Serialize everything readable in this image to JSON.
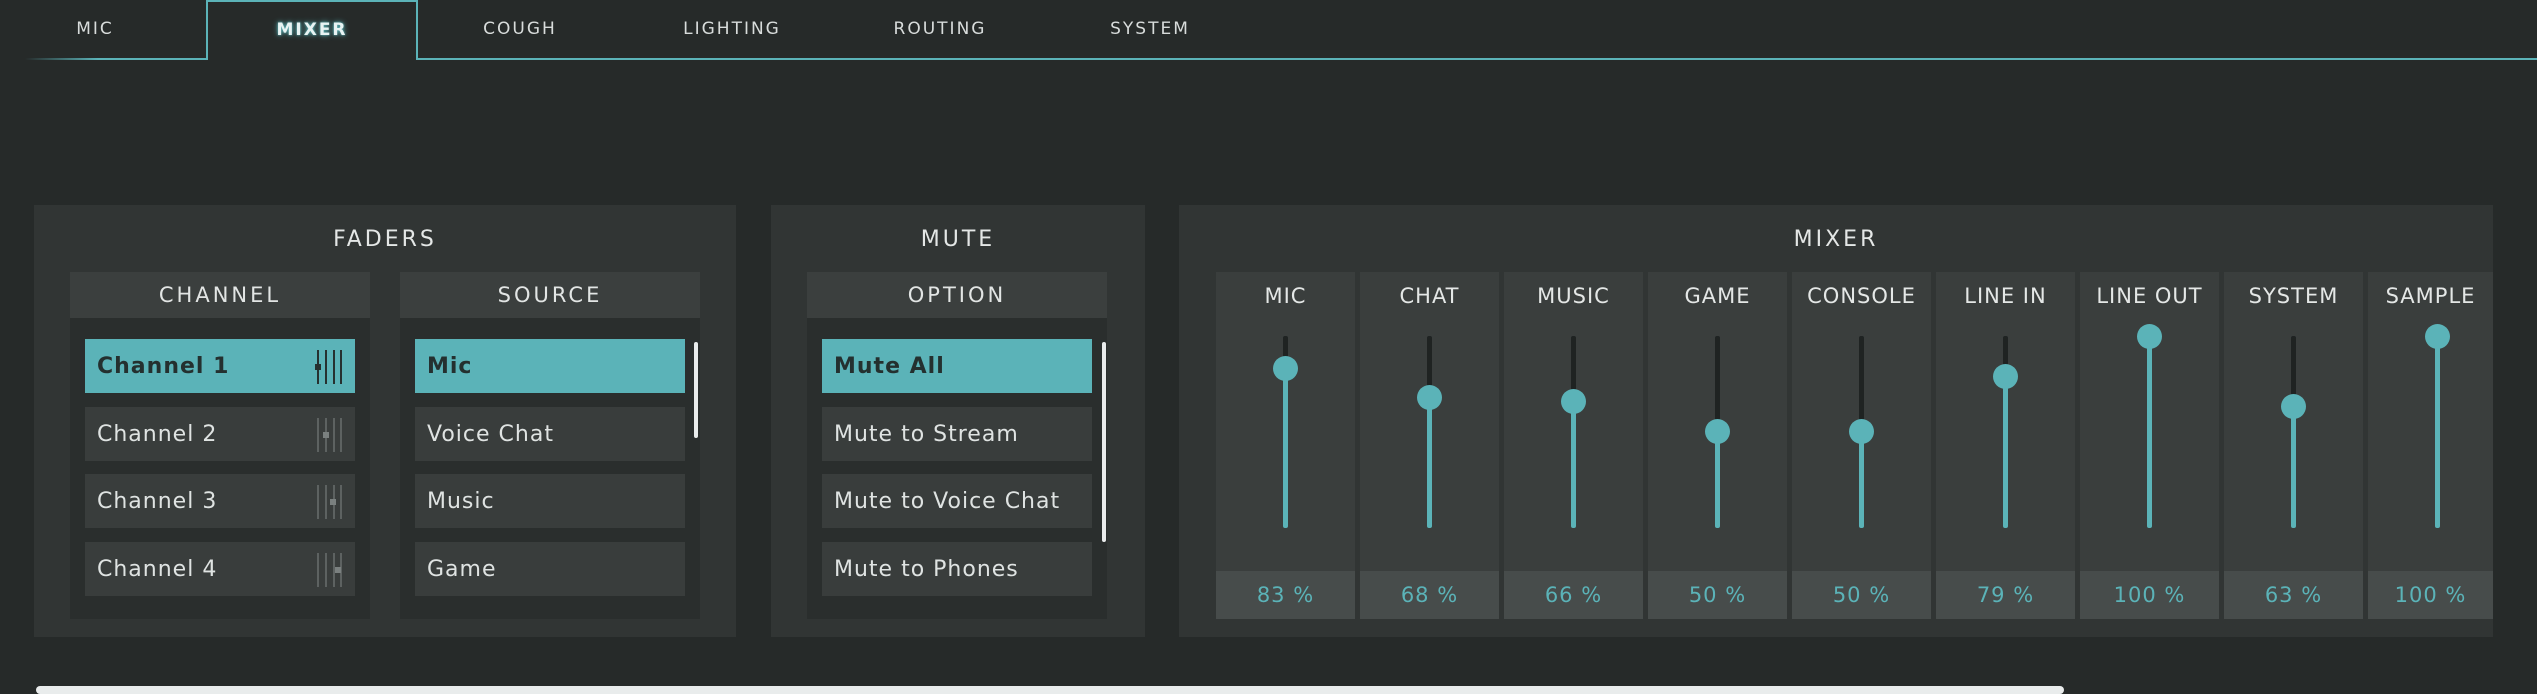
{
  "tabs": [
    {
      "label": "MIC",
      "active": false
    },
    {
      "label": "MIXER",
      "active": true
    },
    {
      "label": "COUGH",
      "active": false
    },
    {
      "label": "LIGHTING",
      "active": false
    },
    {
      "label": "ROUTING",
      "active": false
    },
    {
      "label": "SYSTEM",
      "active": false
    }
  ],
  "faders": {
    "title": "FADERS",
    "channel_header": "CHANNEL",
    "source_header": "SOURCE",
    "channels": [
      {
        "label": "Channel 1",
        "selected": true
      },
      {
        "label": "Channel 2",
        "selected": false
      },
      {
        "label": "Channel 3",
        "selected": false
      },
      {
        "label": "Channel 4",
        "selected": false
      }
    ],
    "sources": [
      {
        "label": "Mic",
        "selected": true
      },
      {
        "label": "Voice Chat",
        "selected": false
      },
      {
        "label": "Music",
        "selected": false
      },
      {
        "label": "Game",
        "selected": false
      }
    ]
  },
  "mute": {
    "title": "MUTE",
    "option_header": "OPTION",
    "options": [
      {
        "label": "Mute All",
        "selected": true
      },
      {
        "label": "Mute to Stream",
        "selected": false
      },
      {
        "label": "Mute to Voice Chat",
        "selected": false
      },
      {
        "label": "Mute to Phones",
        "selected": false
      }
    ]
  },
  "mixer": {
    "title": "MIXER",
    "channels": [
      {
        "label": "MIC",
        "value": 83,
        "display": "83 %"
      },
      {
        "label": "CHAT",
        "value": 68,
        "display": "68 %"
      },
      {
        "label": "MUSIC",
        "value": 66,
        "display": "66 %"
      },
      {
        "label": "GAME",
        "value": 50,
        "display": "50 %"
      },
      {
        "label": "CONSOLE",
        "value": 50,
        "display": "50 %"
      },
      {
        "label": "LINE IN",
        "value": 79,
        "display": "79 %"
      },
      {
        "label": "LINE OUT",
        "value": 100,
        "display": "100 %"
      },
      {
        "label": "SYSTEM",
        "value": 63,
        "display": "63 %"
      },
      {
        "label": "SAMPLE",
        "value": 100,
        "display": "100 %"
      }
    ]
  },
  "colors": {
    "accent": "#5bb3b8",
    "background": "#262a29",
    "panel": "#313534"
  },
  "icons": {
    "fader": "fader-icon"
  }
}
